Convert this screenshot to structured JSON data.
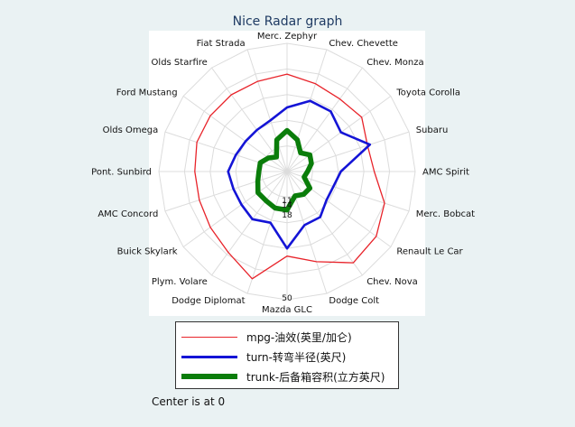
{
  "chart_data": {
    "type": "radar",
    "title": "Nice Radar graph",
    "axes": [
      "Merc. Zephyr",
      "Chev. Chevette",
      "Chev. Monza",
      "Toyota Corolla",
      "Subaru",
      "AMC Spirit",
      "Merc. Bobcat",
      "Renault Le Car",
      "Chev. Nova",
      "Dodge Colt",
      "Mazda GLC",
      "Dodge Diplomat",
      "Plym. Volare",
      "Buick Skylark",
      "AMC Concord",
      "Pont. Sunbird",
      "Olds Omega",
      "Ford Mustang",
      "Olds Starfire",
      "Fiat Strada"
    ],
    "rlim": [
      0,
      50
    ],
    "radial_tick_labels": [
      "11",
      "14",
      "18",
      "50"
    ],
    "grid": true,
    "legend_position": "bottom",
    "series": [
      {
        "name": "mpg-油效(英里/加仑)",
        "color": "#e8232a",
        "values": [
          38,
          36,
          35,
          36,
          33,
          34,
          40,
          43,
          44,
          37,
          33,
          44,
          39,
          37,
          36,
          36,
          37,
          37,
          37,
          37
        ]
      },
      {
        "name": "turn-转弯半径(英尺)",
        "color": "#1414d6",
        "values": [
          25,
          29,
          29,
          26,
          34,
          21,
          19,
          19,
          22,
          22,
          30,
          21,
          23,
          22,
          22,
          23,
          21,
          20,
          20,
          21
        ]
      },
      {
        "name": "trunk-后备箱容积(立方英尺)",
        "color": "#0a7d0a",
        "values": [
          16,
          13,
          9,
          11,
          10,
          8,
          7,
          11,
          11,
          10,
          15,
          15,
          14,
          14,
          12,
          11,
          11,
          9,
          7,
          13
        ]
      }
    ]
  },
  "footnote": "Center is at 0"
}
